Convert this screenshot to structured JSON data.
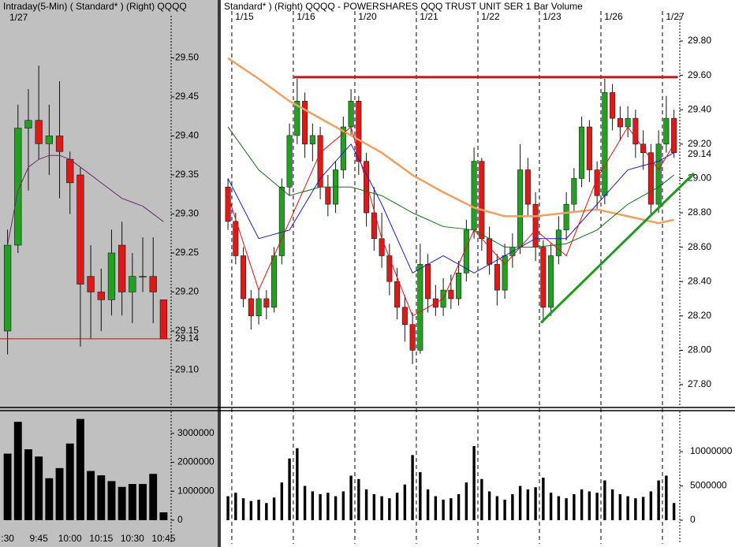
{
  "chart_data": [
    {
      "type": "candlestick",
      "title": "Intraday(5-Min) ( Standard* )   (Right)   QQQQ",
      "subtitle": "1/27",
      "open": [
        29.15,
        29.26,
        29.41,
        29.42,
        29.39,
        29.4,
        29.37,
        29.35,
        29.22,
        29.2,
        29.19,
        29.26,
        29.2,
        29.22,
        29.22,
        29.19
      ],
      "high": [
        29.28,
        29.44,
        29.46,
        29.49,
        29.44,
        29.47,
        29.38,
        29.36,
        29.26,
        29.23,
        29.28,
        29.29,
        29.25,
        29.27,
        29.27,
        29.19
      ],
      "low": [
        29.12,
        29.25,
        29.33,
        29.37,
        29.35,
        29.32,
        29.3,
        29.13,
        29.14,
        29.15,
        29.17,
        29.17,
        29.16,
        29.2,
        29.16,
        29.14
      ],
      "close": [
        29.26,
        29.41,
        29.42,
        29.39,
        29.4,
        29.38,
        29.34,
        29.21,
        29.2,
        29.19,
        29.25,
        29.2,
        29.22,
        29.22,
        29.2,
        29.14
      ],
      "up_color": "#22a022",
      "down_color": "#e01818",
      "overlays": [
        {
          "color": "#6a2a6a",
          "values": [
            29.26,
            29.33,
            29.36,
            29.37,
            29.375,
            29.375,
            29.37,
            29.36,
            29.35,
            29.34,
            29.33,
            29.32,
            29.315,
            29.31,
            29.3,
            29.29
          ]
        }
      ],
      "last_price": 29.14,
      "last_price_color": "#e00000",
      "ylim": [
        29.054,
        29.554
      ],
      "yticks": [
        {
          "value": 29.1,
          "label": "29.10"
        },
        29.15,
        {
          "value": 29.2,
          "label": "29.20"
        },
        29.25,
        {
          "value": 29.3,
          "label": "29.30"
        },
        29.35,
        {
          "value": 29.4,
          "label": "29.40"
        },
        29.45,
        {
          "value": 29.5,
          "label": "29.50"
        }
      ]
    },
    {
      "type": "bar",
      "color": "#000000",
      "categories": [
        ":30",
        null,
        null,
        "9:45",
        null,
        null,
        "10:00",
        null,
        null,
        "10:15",
        null,
        null,
        "10:30",
        null,
        null,
        "10:45"
      ],
      "values": [
        2300000,
        3400000,
        2450000,
        2200000,
        1450000,
        1800000,
        2650000,
        3500000,
        1700000,
        1550000,
        1350000,
        1150000,
        1250000,
        1250000,
        1600000,
        270000
      ],
      "ylim": [
        -820000,
        3760000
      ],
      "yticks": [
        0,
        1000000,
        2000000,
        3000000
      ]
    },
    {
      "type": "candlestick",
      "title": "Standard* )   (Right)   QQQQ - POWERSHARES QQQ TRUST UNIT SER 1   Bar   Volume",
      "categories": [
        null,
        "1/15",
        null,
        null,
        null,
        null,
        null,
        null,
        null,
        "1/16",
        null,
        null,
        null,
        null,
        null,
        null,
        null,
        "1/20",
        null,
        null,
        null,
        null,
        null,
        null,
        null,
        "1/21",
        null,
        null,
        null,
        null,
        null,
        null,
        null,
        "1/22",
        null,
        null,
        null,
        null,
        null,
        null,
        null,
        "1/23",
        null,
        null,
        null,
        null,
        null,
        null,
        null,
        "1/26",
        null,
        null,
        null,
        null,
        null,
        null,
        null,
        "1/27",
        null
      ],
      "open": [
        28.95,
        28.75,
        28.55,
        28.3,
        28.2,
        28.3,
        28.25,
        28.55,
        28.95,
        29.25,
        29.45,
        29.2,
        29.25,
        28.95,
        28.85,
        29.05,
        29.3,
        29.45,
        29.1,
        28.8,
        28.65,
        28.55,
        28.4,
        28.25,
        28.15,
        28.0,
        28.5,
        28.3,
        28.25,
        28.35,
        28.3,
        28.45,
        28.7,
        29.1,
        28.65,
        28.5,
        28.35,
        28.55,
        28.6,
        29.05,
        28.85,
        28.6,
        28.25,
        28.55,
        28.7,
        28.85,
        29.0,
        29.3,
        29.05,
        28.9,
        29.5,
        29.35,
        29.3,
        29.35,
        29.2,
        29.15,
        28.85,
        29.2,
        29.35
      ],
      "high": [
        29.0,
        28.8,
        28.6,
        28.35,
        28.36,
        28.35,
        28.6,
        29.0,
        29.32,
        29.58,
        29.5,
        29.32,
        29.3,
        29.02,
        29.1,
        29.36,
        29.52,
        29.48,
        29.15,
        28.95,
        28.8,
        28.62,
        28.48,
        28.32,
        28.22,
        28.62,
        28.56,
        28.38,
        28.42,
        28.44,
        28.52,
        28.76,
        29.18,
        29.12,
        28.72,
        28.56,
        28.62,
        28.68,
        29.2,
        29.12,
        28.92,
        28.64,
        28.62,
        28.78,
        28.92,
        29.06,
        29.36,
        29.34,
        29.1,
        29.58,
        29.55,
        29.42,
        29.42,
        29.4,
        29.28,
        29.2,
        29.28,
        29.48,
        29.4
      ],
      "low": [
        28.7,
        28.5,
        28.25,
        28.12,
        28.15,
        28.18,
        28.22,
        28.5,
        28.9,
        29.2,
        29.12,
        29.1,
        28.88,
        28.78,
        28.8,
        29.0,
        29.25,
        29.02,
        28.72,
        28.58,
        28.48,
        28.32,
        28.18,
        28.05,
        27.92,
        27.98,
        28.22,
        28.2,
        28.2,
        28.24,
        28.26,
        28.4,
        28.65,
        28.58,
        28.44,
        28.26,
        28.3,
        28.48,
        28.56,
        28.78,
        28.52,
        28.16,
        28.2,
        28.5,
        28.64,
        28.8,
        28.95,
        28.98,
        28.82,
        28.85,
        29.28,
        29.22,
        29.24,
        29.12,
        29.05,
        28.78,
        28.8,
        29.15,
        29.12
      ],
      "close": [
        28.75,
        28.55,
        28.3,
        28.2,
        28.3,
        28.25,
        28.55,
        28.95,
        29.25,
        29.45,
        29.2,
        29.25,
        28.95,
        28.85,
        29.05,
        29.3,
        29.45,
        29.1,
        28.8,
        28.65,
        28.55,
        28.4,
        28.25,
        28.15,
        28.0,
        28.5,
        28.3,
        28.25,
        28.35,
        28.3,
        28.45,
        28.7,
        29.1,
        28.65,
        28.5,
        28.35,
        28.55,
        28.6,
        29.05,
        28.85,
        28.6,
        28.25,
        28.55,
        28.7,
        28.85,
        29.0,
        29.3,
        29.05,
        28.9,
        29.5,
        29.35,
        29.3,
        29.35,
        29.2,
        29.15,
        28.85,
        29.2,
        29.35,
        29.15
      ],
      "up_color": "#22a022",
      "down_color": "#e01818",
      "overlays": [
        {
          "color": "#f0a060",
          "x": [
            0,
            4,
            8,
            12,
            16,
            20,
            24,
            28,
            32,
            36,
            40,
            44,
            48,
            52,
            56,
            58
          ],
          "values": [
            29.7,
            29.58,
            29.45,
            29.35,
            29.25,
            29.15,
            29.02,
            28.92,
            28.83,
            28.78,
            28.78,
            28.8,
            28.82,
            28.78,
            28.74,
            28.76
          ]
        },
        {
          "color": "#107010",
          "x": [
            0,
            4,
            8,
            12,
            16,
            20,
            24,
            28,
            32,
            36,
            40,
            44,
            48,
            52,
            56,
            58
          ],
          "values": [
            29.3,
            29.05,
            28.9,
            28.95,
            28.95,
            28.9,
            28.8,
            28.72,
            28.7,
            28.6,
            28.6,
            28.62,
            28.7,
            28.85,
            28.95,
            29.02
          ]
        },
        {
          "color": "#1a1acc",
          "x": [
            0,
            4,
            8,
            12,
            16,
            20,
            24,
            28,
            32,
            36,
            40,
            44,
            48,
            52,
            56,
            58
          ],
          "values": [
            29.0,
            28.65,
            28.7,
            29.0,
            29.2,
            28.85,
            28.45,
            28.55,
            28.45,
            28.55,
            28.65,
            28.65,
            28.85,
            29.05,
            29.1,
            29.15
          ]
        },
        {
          "color": "#e01010",
          "x": [
            0,
            4,
            8,
            12,
            16,
            20,
            24,
            28,
            32,
            36,
            40,
            44,
            48,
            52,
            56,
            58
          ],
          "values": [
            28.9,
            28.35,
            28.75,
            29.15,
            29.3,
            28.65,
            28.2,
            28.3,
            28.7,
            28.5,
            28.7,
            28.55,
            29.0,
            29.3,
            29.05,
            29.2
          ]
        }
      ],
      "trend_lines": [
        {
          "color": "#b81c1c",
          "x": [
            8.6,
            58.5
          ],
          "y": [
            29.59,
            29.59
          ]
        },
        {
          "color": "#1e9a1e",
          "x": [
            40.7,
            60.6
          ],
          "y": [
            28.16,
            29.03
          ]
        }
      ],
      "last_price": 29.14,
      "ylim": [
        27.676,
        29.947
      ],
      "yticks": [
        {
          "value": 27.8,
          "label": "27.80"
        },
        {
          "value": 28,
          "label": "28.00"
        },
        {
          "value": 28.2,
          "label": "28.20"
        },
        {
          "value": 28.4,
          "label": "28.40"
        },
        {
          "value": 28.6,
          "label": "28.60"
        },
        {
          "value": 28.8,
          "label": "28.80"
        },
        {
          "value": 29,
          "label": "29.00"
        },
        {
          "value": 29.2,
          "label": "29.20"
        },
        {
          "value": 29.4,
          "label": "29.40"
        },
        {
          "value": 29.6,
          "label": "29.60"
        },
        {
          "value": 29.8,
          "label": "29.80"
        }
      ]
    },
    {
      "type": "bar",
      "color": "#000000",
      "values": [
        3500000,
        4000000,
        3200000,
        2800000,
        3000000,
        2500000,
        3300000,
        5500000,
        9000000,
        10500000,
        5000000,
        4200000,
        3800000,
        4000000,
        3500000,
        4200000,
        6500000,
        6000000,
        4500000,
        3800000,
        3500000,
        3200000,
        4000000,
        5200000,
        9500000,
        7000000,
        4500000,
        3500000,
        3000000,
        3200000,
        3800000,
        5500000,
        10800000,
        6000000,
        4200000,
        3500000,
        3000000,
        3800000,
        5000000,
        4500000,
        4800000,
        6200000,
        4000000,
        3500000,
        3200000,
        3800000,
        4500000,
        4200000,
        4000000,
        5800000,
        4500000,
        3800000,
        3500000,
        3200000,
        3400000,
        4200000,
        5800000,
        6500000,
        2500000
      ],
      "ylim": [
        -3450000,
        15860000
      ],
      "yticks": [
        0,
        5000000,
        10000000
      ]
    }
  ]
}
